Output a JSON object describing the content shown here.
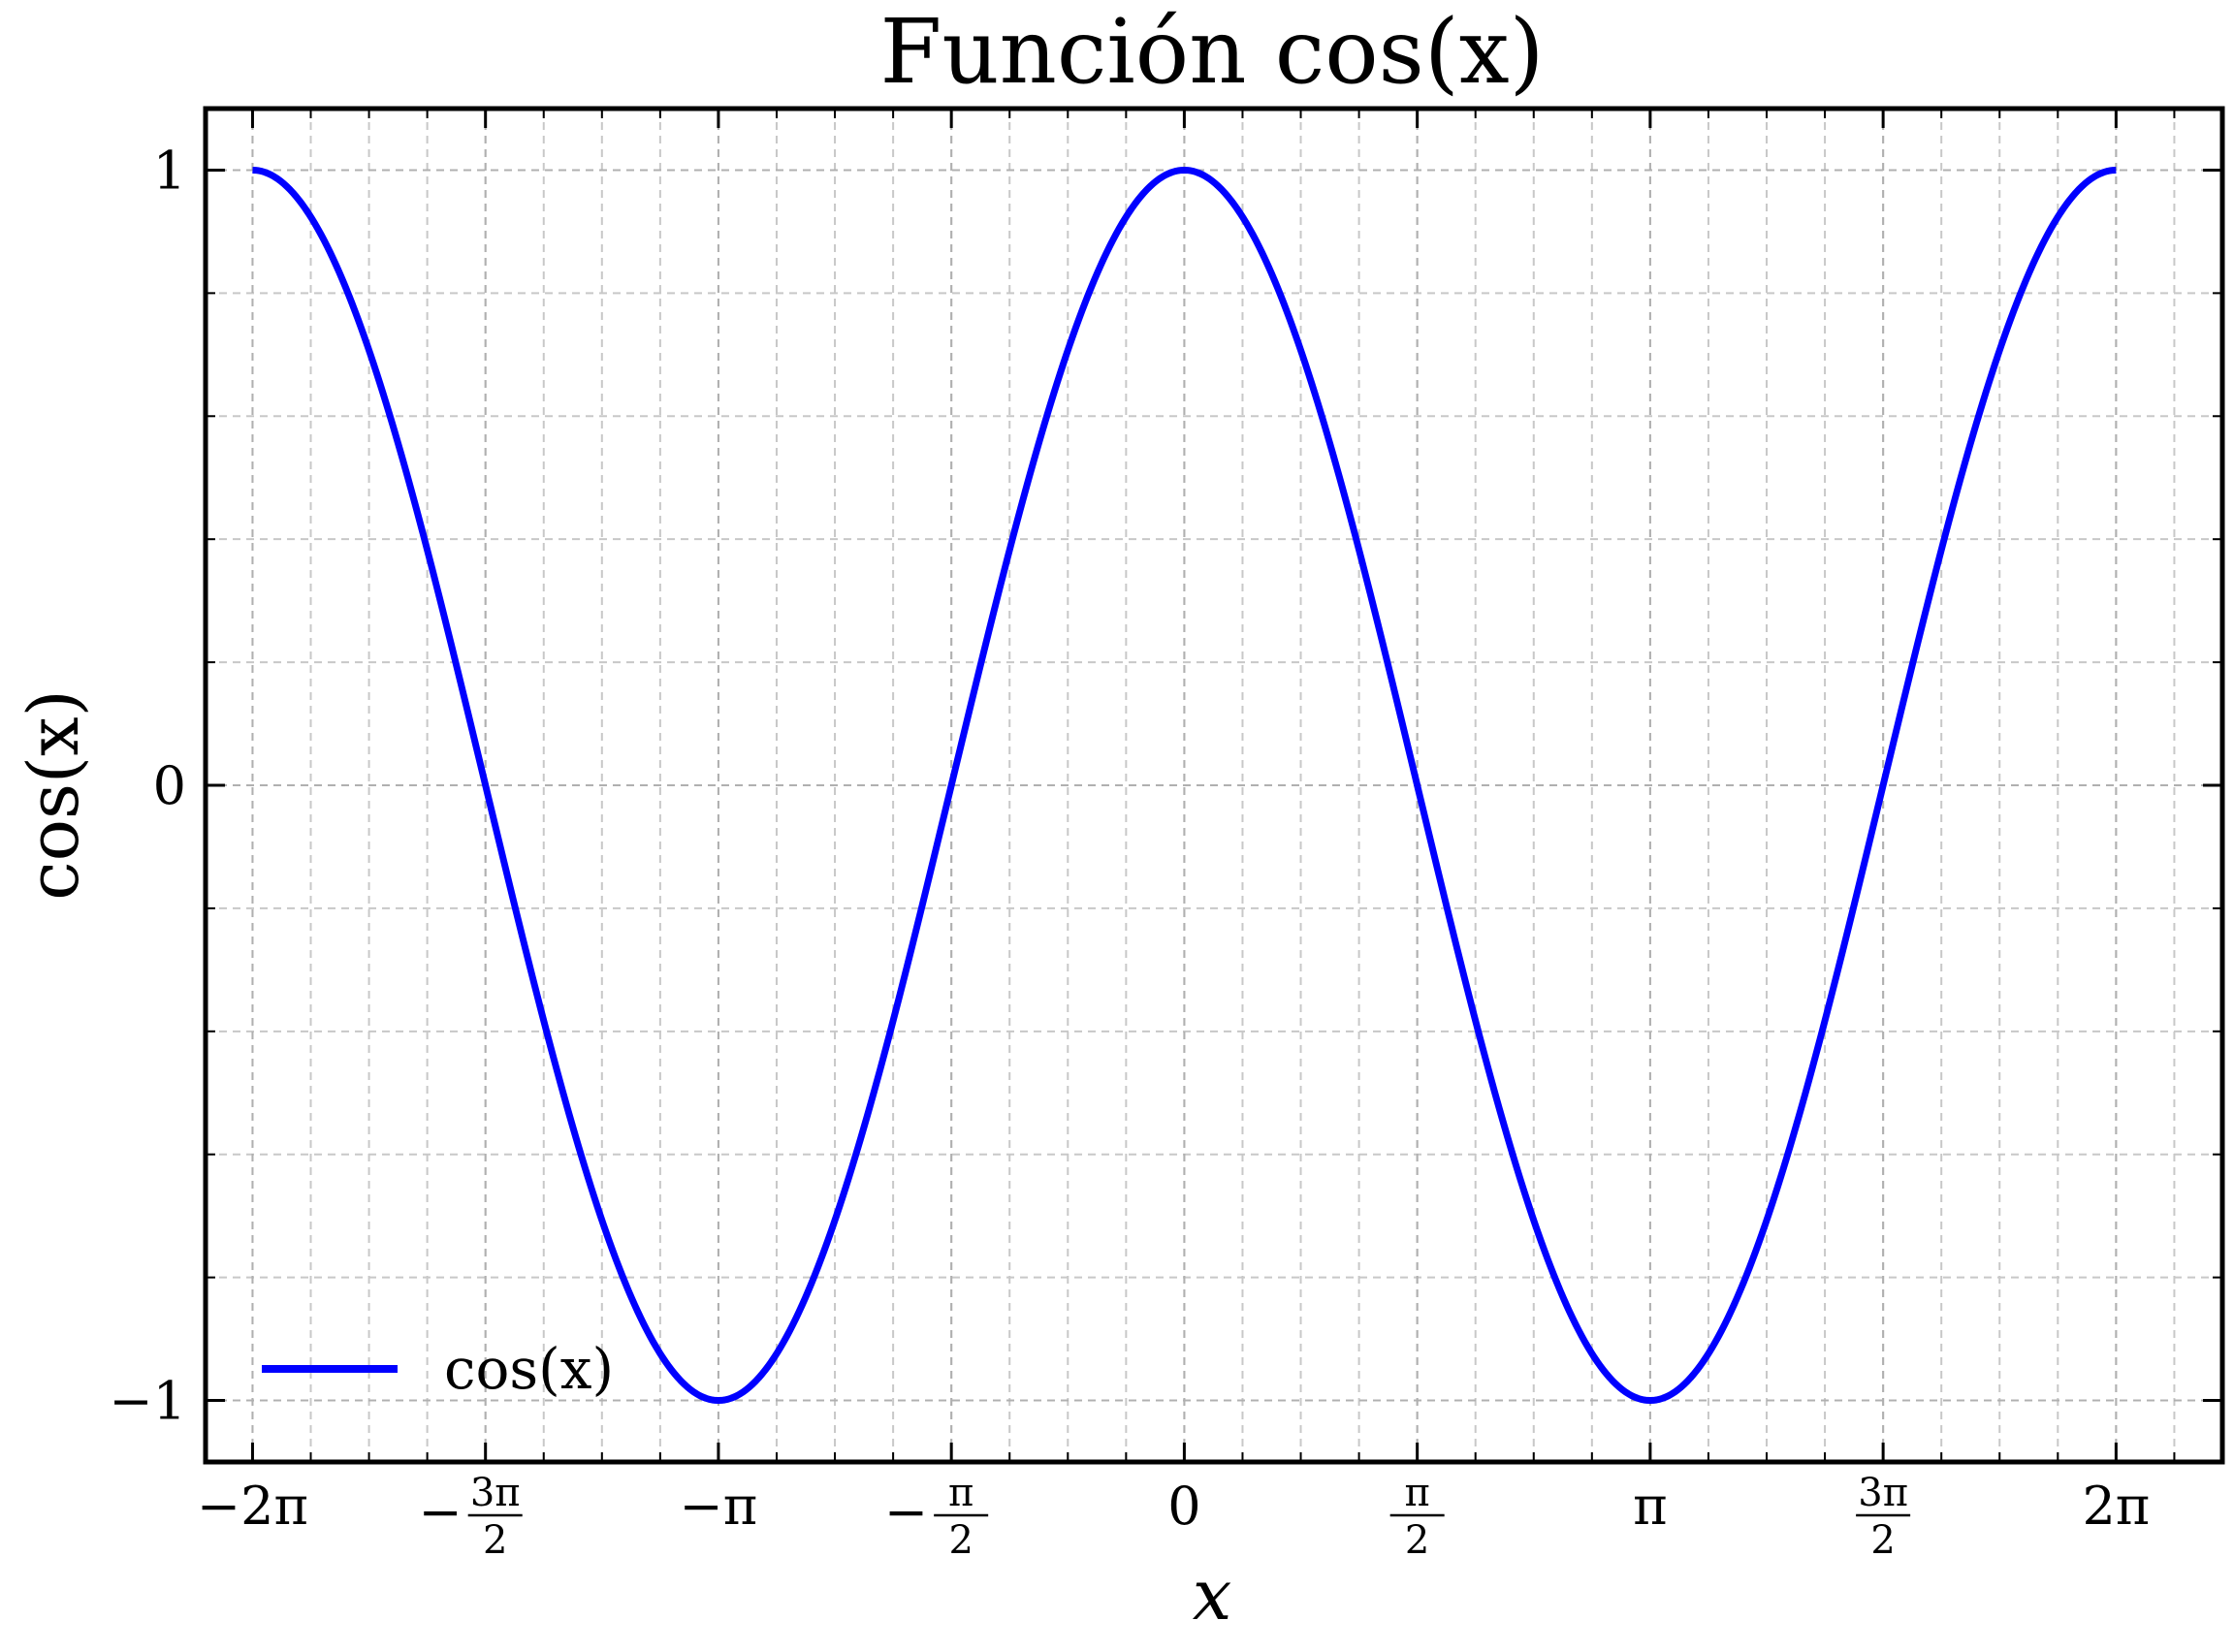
{
  "chart_data": {
    "type": "line",
    "title": "Función cos(x)",
    "xlabel": "x",
    "ylabel": "cos(x)",
    "xlim": [
      -6.6,
      7.0
    ],
    "ylim": [
      -1.1,
      1.1
    ],
    "grid": true,
    "legend_position": "lower-left",
    "x_ticks": [
      {
        "value": -6.2832,
        "label": "−2π"
      },
      {
        "value": -4.7124,
        "label": "−3π/2",
        "sign": "−",
        "num": "3π",
        "den": "2"
      },
      {
        "value": -3.1416,
        "label": "−π"
      },
      {
        "value": -1.5708,
        "label": "−π/2",
        "sign": "−",
        "num": "π",
        "den": "2"
      },
      {
        "value": 0,
        "label": "0"
      },
      {
        "value": 1.5708,
        "label": "π/2",
        "sign": "",
        "num": "π",
        "den": "2"
      },
      {
        "value": 3.1416,
        "label": "π"
      },
      {
        "value": 4.7124,
        "label": "3π/2",
        "sign": "",
        "num": "3π",
        "den": "2"
      },
      {
        "value": 6.2832,
        "label": "2π"
      }
    ],
    "y_ticks": [
      {
        "value": -1,
        "label": "−1"
      },
      {
        "value": 0,
        "label": "0"
      },
      {
        "value": 1,
        "label": "1"
      }
    ],
    "series": [
      {
        "name": "cos(x)",
        "color": "#0000ff",
        "function": "cos",
        "domain": [
          -6.2832,
          6.2832
        ],
        "x": [
          -6.2832,
          -4.7124,
          -3.1416,
          -1.5708,
          0,
          1.5708,
          3.1416,
          4.7124,
          6.2832
        ],
        "y": [
          1,
          0,
          -1,
          0,
          1,
          0,
          -1,
          0,
          1
        ]
      }
    ]
  }
}
